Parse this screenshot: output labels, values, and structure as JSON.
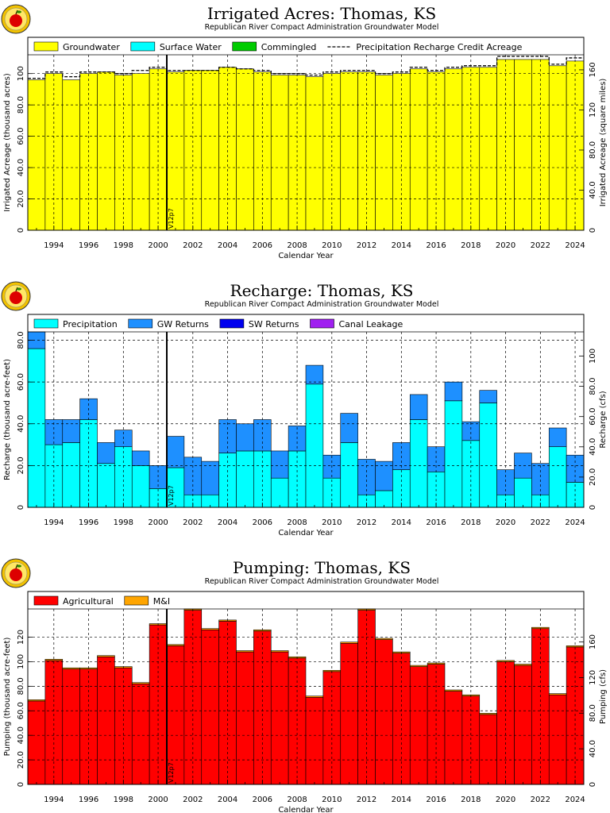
{
  "chart_data": [
    {
      "type": "bar",
      "title": "Irrigated Acres: Thomas, KS",
      "subtitle": "Republican River Compact Administration Groundwater Model",
      "xlabel": "Calendar Year",
      "ylabel": "Irrigated Acreage (thousand acres)",
      "y2label": "Irrigated Acreage (square miles)",
      "ylim": [
        0,
        112
      ],
      "yticks": [
        0,
        20,
        40,
        60,
        80,
        100
      ],
      "y2lim": [
        0,
        175
      ],
      "y2ticks": [
        0,
        40.0,
        80.0,
        120,
        160
      ],
      "grid": true,
      "legend_position": "top",
      "marker_label": "V12p7",
      "marker_year": 2000.5,
      "x": [
        1993,
        1994,
        1995,
        1996,
        1997,
        1998,
        1999,
        2000,
        2001,
        2002,
        2003,
        2004,
        2005,
        2006,
        2007,
        2008,
        2009,
        2010,
        2011,
        2012,
        2013,
        2014,
        2015,
        2016,
        2017,
        2018,
        2019,
        2020,
        2021,
        2022,
        2023,
        2024
      ],
      "xticks": [
        1994,
        1996,
        1998,
        2000,
        2002,
        2004,
        2006,
        2008,
        2010,
        2012,
        2014,
        2016,
        2018,
        2020,
        2022,
        2024
      ],
      "series": [
        {
          "name": "Groundwater",
          "color": "#ffff00",
          "values": [
            96,
            100,
            96,
            100,
            101,
            99,
            100,
            103,
            101,
            102,
            102,
            104,
            103,
            101,
            99,
            99,
            98,
            100,
            101,
            101,
            99,
            100,
            103,
            101,
            103,
            104,
            104,
            109,
            109,
            109,
            105,
            108
          ]
        },
        {
          "name": "Surface Water",
          "color": "#00ffff",
          "values": [
            0,
            0,
            0,
            0,
            0,
            0,
            0,
            0,
            0,
            0,
            0,
            0,
            0,
            0,
            0,
            0,
            0,
            0,
            0,
            0,
            0,
            0,
            0,
            0,
            0,
            0,
            0,
            0,
            0,
            0,
            0,
            0
          ]
        },
        {
          "name": "Commingled",
          "color": "#00cc00",
          "values": [
            0,
            0,
            0,
            0,
            0,
            0,
            0,
            0,
            0,
            0,
            0,
            0,
            0,
            0,
            0,
            0,
            0,
            0,
            0,
            0,
            0,
            0,
            0,
            0,
            0,
            0,
            0,
            0,
            0,
            0,
            0,
            0
          ]
        },
        {
          "name": "Precipitation Recharge Credit Acreage",
          "color": "#000000",
          "line": "dashed",
          "values": [
            97,
            101,
            98,
            101,
            101,
            100,
            102,
            104,
            102,
            102,
            102,
            104,
            103,
            102,
            100,
            100,
            99,
            101,
            102,
            102,
            100,
            101,
            104,
            102,
            104,
            105,
            105,
            111,
            111,
            111,
            106,
            110
          ]
        }
      ],
      "legend": [
        "Groundwater",
        "Surface Water",
        "Commingled",
        "Precipitation Recharge Credit Acreage"
      ]
    },
    {
      "type": "bar",
      "title": "Recharge: Thomas, KS",
      "subtitle": "Republican River Compact Administration Groundwater Model",
      "xlabel": "Calendar Year",
      "ylabel": "Recharge (thousand acre-feet)",
      "y2label": "Recharge (cfs)",
      "ylim": [
        0,
        84
      ],
      "yticks": [
        0,
        20.0,
        40.0,
        60.0,
        80.0
      ],
      "y2lim": [
        0,
        116
      ],
      "y2ticks": [
        0,
        20.0,
        40.0,
        60.0,
        80.0,
        100
      ],
      "grid": true,
      "legend_position": "top",
      "marker_label": "V12p7",
      "marker_year": 2000.5,
      "x": [
        1993,
        1994,
        1995,
        1996,
        1997,
        1998,
        1999,
        2000,
        2001,
        2002,
        2003,
        2004,
        2005,
        2006,
        2007,
        2008,
        2009,
        2010,
        2011,
        2012,
        2013,
        2014,
        2015,
        2016,
        2017,
        2018,
        2019,
        2020,
        2021,
        2022,
        2023,
        2024
      ],
      "xticks": [
        1994,
        1996,
        1998,
        2000,
        2002,
        2004,
        2006,
        2008,
        2010,
        2012,
        2014,
        2016,
        2018,
        2020,
        2022,
        2024
      ],
      "series": [
        {
          "name": "Precipitation",
          "color": "#00ffff",
          "values": [
            76,
            30,
            31,
            42,
            21,
            29,
            20,
            9,
            19,
            6,
            6,
            26,
            27,
            27,
            14,
            27,
            59,
            14,
            31,
            6,
            8,
            18,
            42,
            17,
            51,
            32,
            50,
            6,
            14,
            6,
            29,
            12
          ]
        },
        {
          "name": "GW Returns",
          "color": "#1e90ff",
          "values": [
            8,
            12,
            11,
            10,
            10,
            8,
            7,
            11,
            15,
            18,
            16,
            16,
            13,
            15,
            13,
            12,
            9,
            11,
            14,
            17,
            14,
            13,
            12,
            12,
            9,
            9,
            6,
            12,
            12,
            15,
            9,
            13
          ]
        },
        {
          "name": "SW Returns",
          "color": "#0000ee",
          "values": [
            0,
            0,
            0,
            0,
            0,
            0,
            0,
            0,
            0,
            0,
            0,
            0,
            0,
            0,
            0,
            0,
            0,
            0,
            0,
            0,
            0,
            0,
            0,
            0,
            0,
            0,
            0,
            0,
            0,
            0,
            0,
            0
          ]
        },
        {
          "name": "Canal Leakage",
          "color": "#a020f0",
          "values": [
            0,
            0,
            0,
            0,
            0,
            0,
            0,
            0,
            0,
            0,
            0,
            0,
            0,
            0,
            0,
            0,
            0,
            0,
            0,
            0,
            0,
            0,
            0,
            0,
            0,
            0,
            0,
            0,
            0,
            0,
            0,
            0
          ]
        }
      ],
      "legend": [
        "Precipitation",
        "GW Returns",
        "SW Returns",
        "Canal Leakage"
      ]
    },
    {
      "type": "bar",
      "title": "Pumping: Thomas, KS",
      "subtitle": "Republican River Compact Administration Groundwater Model",
      "xlabel": "Calendar Year",
      "ylabel": "Pumping (thousand acre-feet)",
      "y2label": "Pumping (cfs)",
      "ylim": [
        0,
        143
      ],
      "yticks": [
        0,
        20.0,
        40.0,
        60.0,
        80.0,
        100,
        120
      ],
      "y2lim": [
        0,
        197
      ],
      "y2ticks": [
        0,
        40.0,
        80.0,
        120,
        160
      ],
      "grid": true,
      "legend_position": "top",
      "marker_label": "V12p7",
      "marker_year": 2000.5,
      "x": [
        1993,
        1994,
        1995,
        1996,
        1997,
        1998,
        1999,
        2000,
        2001,
        2002,
        2003,
        2004,
        2005,
        2006,
        2007,
        2008,
        2009,
        2010,
        2011,
        2012,
        2013,
        2014,
        2015,
        2016,
        2017,
        2018,
        2019,
        2020,
        2021,
        2022,
        2023,
        2024
      ],
      "xticks": [
        1994,
        1996,
        1998,
        2000,
        2002,
        2004,
        2006,
        2008,
        2010,
        2012,
        2014,
        2016,
        2018,
        2020,
        2022,
        2024
      ],
      "series": [
        {
          "name": "Agricultural",
          "color": "#ff0000",
          "values": [
            68,
            101,
            94,
            94,
            104,
            95,
            82,
            130,
            113,
            142,
            126,
            133,
            108,
            125,
            108,
            103,
            71,
            92,
            115,
            142,
            118,
            107,
            96,
            98,
            76,
            72,
            57,
            100,
            97,
            127,
            73,
            112
          ]
        },
        {
          "name": "M&I",
          "color": "#ffa500",
          "values": [
            1,
            1,
            1,
            1,
            1,
            1,
            1,
            1,
            1,
            1,
            1,
            1,
            1,
            1,
            1,
            1,
            1,
            1,
            1,
            1,
            1,
            1,
            1,
            1,
            1,
            1,
            1,
            1,
            1,
            1,
            1,
            1
          ]
        }
      ],
      "legend": [
        "Agricultural",
        "M&I"
      ]
    }
  ]
}
